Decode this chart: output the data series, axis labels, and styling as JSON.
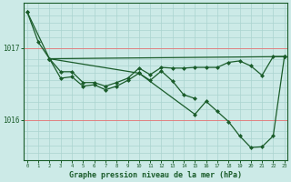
{
  "background_color": "#cceae7",
  "grid_color_minor": "#aad4d0",
  "grid_color_red": "#e08080",
  "line_color": "#1a5c2a",
  "ylabel_values": [
    1016,
    1017
  ],
  "xlabel_label": "Graphe pression niveau de la mer (hPa)",
  "x_ticks": [
    0,
    1,
    2,
    3,
    4,
    5,
    6,
    7,
    8,
    9,
    10,
    11,
    12,
    13,
    14,
    15,
    16,
    17,
    18,
    19,
    20,
    21,
    22,
    23
  ],
  "xlim": [
    -0.3,
    23.3
  ],
  "ylim": [
    1015.45,
    1017.62
  ],
  "line1_x": [
    0,
    1,
    2,
    23
  ],
  "line1_y": [
    1017.5,
    1017.08,
    1016.85,
    1016.88
  ],
  "line2_x": [
    2,
    3,
    4,
    5,
    6,
    7,
    8,
    9,
    10,
    11,
    12,
    13,
    14,
    15,
    16,
    17,
    18,
    19,
    20,
    21,
    22,
    23
  ],
  "line2_y": [
    1016.85,
    1016.67,
    1016.67,
    1016.52,
    1016.52,
    1016.47,
    1016.52,
    1016.58,
    1016.72,
    1016.63,
    1016.73,
    1016.72,
    1016.72,
    1016.73,
    1016.73,
    1016.73,
    1016.8,
    1016.82,
    1016.75,
    1016.62,
    1016.88,
    1016.88
  ],
  "line3_x": [
    2,
    3,
    4,
    5,
    6,
    7,
    8,
    9,
    10,
    11,
    12,
    13,
    14,
    15
  ],
  "line3_y": [
    1016.85,
    1016.58,
    1016.6,
    1016.47,
    1016.49,
    1016.42,
    1016.47,
    1016.55,
    1016.65,
    1016.55,
    1016.68,
    1016.54,
    1016.35,
    1016.3
  ],
  "line4_x": [
    0,
    2,
    10,
    15,
    16,
    17,
    18,
    19,
    20,
    21,
    22,
    23
  ],
  "line4_y": [
    1017.5,
    1016.85,
    1016.65,
    1016.08,
    1016.26,
    1016.12,
    1015.98,
    1015.78,
    1015.62,
    1015.63,
    1015.78,
    1016.88
  ]
}
